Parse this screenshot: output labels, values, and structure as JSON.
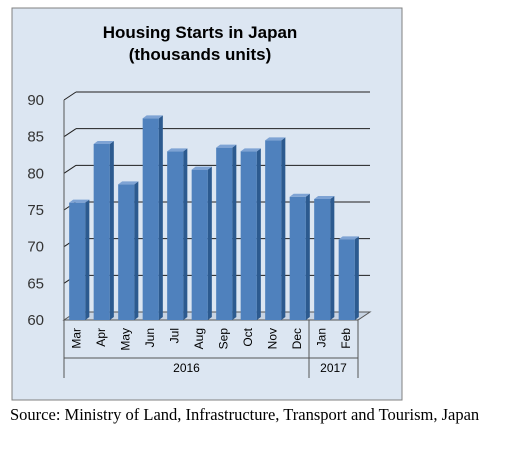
{
  "chart_data": {
    "type": "bar",
    "title": "Housing Starts in Japan",
    "subtitle": "(thousands units)",
    "categories": [
      "Mar",
      "Apr",
      "May",
      "Jun",
      "Jul",
      "Aug",
      "Sep",
      "Oct",
      "Nov",
      "Dec",
      "Jan",
      "Feb"
    ],
    "values": [
      76,
      84,
      78.5,
      87.5,
      83,
      80.5,
      83.5,
      83,
      84.5,
      76.8,
      76.5,
      71
    ],
    "groups": [
      {
        "label": "2016",
        "span": 10
      },
      {
        "label": "2017",
        "span": 2
      }
    ],
    "yticks": [
      60,
      65,
      70,
      75,
      80,
      85,
      90
    ],
    "ylim": [
      60,
      90
    ],
    "xlabel": "",
    "ylabel": "",
    "grid": true,
    "legend": "none",
    "colors": {
      "bar": "#4f81bd",
      "bar_side": "#2c5a8f",
      "bar_top": "#7ea3d4",
      "plot_background": "#dce6f2",
      "gridline": "#1f1f1f"
    }
  },
  "source_note": "Source: Ministry of Land, Infrastructure, Transport and Tourism, Japan"
}
